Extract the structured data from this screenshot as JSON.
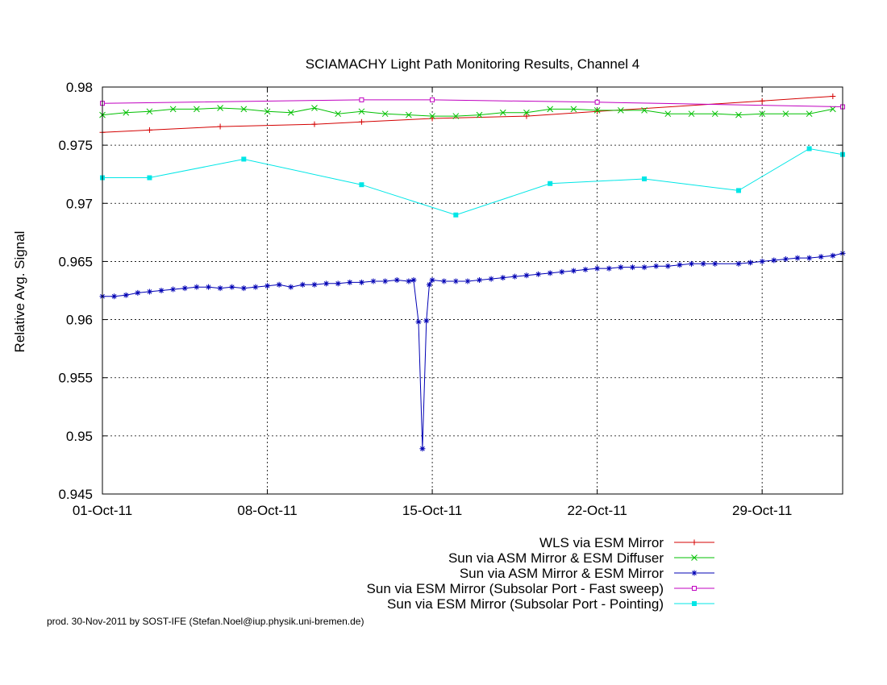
{
  "chart_data": {
    "type": "line",
    "title": "SCIAMACHY Light Path Monitoring Results, Channel 4",
    "xlabel": "",
    "ylabel": "Relative Avg. Signal",
    "x_type": "date",
    "xlim": [
      "2011-10-01",
      "2011-11-01T10:00"
    ],
    "ylim": [
      0.945,
      0.98
    ],
    "x_ticks": [
      {
        "date": "2011-10-01",
        "label": "01-Oct-11"
      },
      {
        "date": "2011-10-08",
        "label": "08-Oct-11"
      },
      {
        "date": "2011-10-15",
        "label": "15-Oct-11"
      },
      {
        "date": "2011-10-22",
        "label": "22-Oct-11"
      },
      {
        "date": "2011-10-29",
        "label": "29-Oct-11"
      }
    ],
    "y_ticks": [
      {
        "value": 0.945,
        "label": "0.945"
      },
      {
        "value": 0.95,
        "label": "0.95"
      },
      {
        "value": 0.955,
        "label": "0.955"
      },
      {
        "value": 0.96,
        "label": "0.96"
      },
      {
        "value": 0.965,
        "label": "0.965"
      },
      {
        "value": 0.97,
        "label": "0.97"
      },
      {
        "value": 0.975,
        "label": "0.975"
      },
      {
        "value": 0.98,
        "label": "0.98"
      }
    ],
    "grid": true,
    "legend_position": "bottom-right, below plot",
    "series": [
      {
        "name": "WLS via ESM Mirror",
        "color": "#d40000",
        "marker": "plus",
        "points": [
          [
            "2011-10-01",
            0.9761
          ],
          [
            "2011-10-03",
            0.9763
          ],
          [
            "2011-10-06",
            0.9766
          ],
          [
            "2011-10-10",
            0.9768
          ],
          [
            "2011-10-12",
            0.977
          ],
          [
            "2011-10-15",
            0.9773
          ],
          [
            "2011-10-19",
            0.9775
          ],
          [
            "2011-10-22",
            0.9779
          ],
          [
            "2011-10-29",
            0.9788
          ],
          [
            "2011-11-01",
            0.9792
          ]
        ]
      },
      {
        "name": "Sun via ASM Mirror & ESM Diffuser",
        "color": "#00c000",
        "marker": "x",
        "points": [
          [
            "2011-10-01",
            0.9776
          ],
          [
            "2011-10-02",
            0.9778
          ],
          [
            "2011-10-03",
            0.9779
          ],
          [
            "2011-10-04",
            0.9781
          ],
          [
            "2011-10-05",
            0.9781
          ],
          [
            "2011-10-06",
            0.9782
          ],
          [
            "2011-10-07",
            0.9781
          ],
          [
            "2011-10-08",
            0.9779
          ],
          [
            "2011-10-09",
            0.9778
          ],
          [
            "2011-10-10",
            0.9782
          ],
          [
            "2011-10-11",
            0.9777
          ],
          [
            "2011-10-12",
            0.9779
          ],
          [
            "2011-10-13",
            0.9777
          ],
          [
            "2011-10-14",
            0.9776
          ],
          [
            "2011-10-15",
            0.9775
          ],
          [
            "2011-10-16",
            0.9775
          ],
          [
            "2011-10-17",
            0.9776
          ],
          [
            "2011-10-18",
            0.9778
          ],
          [
            "2011-10-19",
            0.9778
          ],
          [
            "2011-10-20",
            0.9781
          ],
          [
            "2011-10-21",
            0.9781
          ],
          [
            "2011-10-22",
            0.978
          ],
          [
            "2011-10-23",
            0.978
          ],
          [
            "2011-10-24",
            0.978
          ],
          [
            "2011-10-25",
            0.9777
          ],
          [
            "2011-10-26",
            0.9777
          ],
          [
            "2011-10-27",
            0.9777
          ],
          [
            "2011-10-28",
            0.9776
          ],
          [
            "2011-10-29",
            0.9777
          ],
          [
            "2011-10-30",
            0.9777
          ],
          [
            "2011-10-31",
            0.9777
          ],
          [
            "2011-11-01",
            0.9781
          ]
        ]
      },
      {
        "name": "Sun via ASM Mirror & ESM Mirror",
        "color": "#0000b4",
        "marker": "star",
        "points": [
          [
            "2011-10-01",
            0.962
          ],
          [
            "2011-10-01T12:00",
            0.962
          ],
          [
            "2011-10-02",
            0.9621
          ],
          [
            "2011-10-02T12:00",
            0.9623
          ],
          [
            "2011-10-03",
            0.9624
          ],
          [
            "2011-10-03T12:00",
            0.9625
          ],
          [
            "2011-10-04",
            0.9626
          ],
          [
            "2011-10-04T12:00",
            0.9627
          ],
          [
            "2011-10-05",
            0.9628
          ],
          [
            "2011-10-05T12:00",
            0.9628
          ],
          [
            "2011-10-06",
            0.9627
          ],
          [
            "2011-10-06T12:00",
            0.9628
          ],
          [
            "2011-10-07",
            0.9627
          ],
          [
            "2011-10-07T12:00",
            0.9628
          ],
          [
            "2011-10-08",
            0.9629
          ],
          [
            "2011-10-08T12:00",
            0.963
          ],
          [
            "2011-10-09",
            0.9628
          ],
          [
            "2011-10-09T12:00",
            0.963
          ],
          [
            "2011-10-10",
            0.963
          ],
          [
            "2011-10-10T12:00",
            0.9631
          ],
          [
            "2011-10-11",
            0.9631
          ],
          [
            "2011-10-11T12:00",
            0.9632
          ],
          [
            "2011-10-12",
            0.9632
          ],
          [
            "2011-10-12T12:00",
            0.9633
          ],
          [
            "2011-10-13",
            0.9633
          ],
          [
            "2011-10-13T12:00",
            0.9634
          ],
          [
            "2011-10-14",
            0.9633
          ],
          [
            "2011-10-14T05:00",
            0.9634
          ],
          [
            "2011-10-14T10:00",
            0.9598
          ],
          [
            "2011-10-14T14:00",
            0.9489
          ],
          [
            "2011-10-14T18:00",
            0.9599
          ],
          [
            "2011-10-14T21:00",
            0.963
          ],
          [
            "2011-10-15",
            0.9634
          ],
          [
            "2011-10-15T12:00",
            0.9633
          ],
          [
            "2011-10-16",
            0.9633
          ],
          [
            "2011-10-16T12:00",
            0.9633
          ],
          [
            "2011-10-17",
            0.9634
          ],
          [
            "2011-10-17T12:00",
            0.9635
          ],
          [
            "2011-10-18",
            0.9636
          ],
          [
            "2011-10-18T12:00",
            0.9637
          ],
          [
            "2011-10-19",
            0.9638
          ],
          [
            "2011-10-19T12:00",
            0.9639
          ],
          [
            "2011-10-20",
            0.964
          ],
          [
            "2011-10-20T12:00",
            0.9641
          ],
          [
            "2011-10-21",
            0.9642
          ],
          [
            "2011-10-21T12:00",
            0.9643
          ],
          [
            "2011-10-22",
            0.9644
          ],
          [
            "2011-10-22T12:00",
            0.9644
          ],
          [
            "2011-10-23",
            0.9645
          ],
          [
            "2011-10-23T12:00",
            0.9645
          ],
          [
            "2011-10-24",
            0.9645
          ],
          [
            "2011-10-24T12:00",
            0.9646
          ],
          [
            "2011-10-25",
            0.9646
          ],
          [
            "2011-10-25T12:00",
            0.9647
          ],
          [
            "2011-10-26",
            0.9648
          ],
          [
            "2011-10-26T12:00",
            0.9648
          ],
          [
            "2011-10-27",
            0.9648
          ],
          [
            "2011-10-28",
            0.9648
          ],
          [
            "2011-10-28T12:00",
            0.9649
          ],
          [
            "2011-10-29",
            0.965
          ],
          [
            "2011-10-29T12:00",
            0.9651
          ],
          [
            "2011-10-30",
            0.9652
          ],
          [
            "2011-10-30T12:00",
            0.9653
          ],
          [
            "2011-10-31",
            0.9653
          ],
          [
            "2011-10-31T12:00",
            0.9654
          ],
          [
            "2011-11-01",
            0.9655
          ],
          [
            "2011-11-01T10:00",
            0.9657
          ]
        ]
      },
      {
        "name": "Sun via ESM Mirror (Subsolar Port - Fast sweep)",
        "color": "#c000c0",
        "marker": "square-open",
        "points": [
          [
            "2011-10-01",
            0.9786
          ],
          [
            "2011-10-12",
            0.9789
          ],
          [
            "2011-10-15",
            0.9789
          ],
          [
            "2011-10-22",
            0.9787
          ],
          [
            "2011-11-01T10:00",
            0.9783
          ]
        ]
      },
      {
        "name": "Sun via ESM Mirror (Subsolar Port - Pointing)",
        "color": "#00e6e6",
        "marker": "square-filled",
        "points": [
          [
            "2011-10-01",
            0.9722
          ],
          [
            "2011-10-03",
            0.9722
          ],
          [
            "2011-10-07",
            0.9738
          ],
          [
            "2011-10-12",
            0.9716
          ],
          [
            "2011-10-16",
            0.969
          ],
          [
            "2011-10-20",
            0.9717
          ],
          [
            "2011-10-24",
            0.9721
          ],
          [
            "2011-10-28",
            0.9711
          ],
          [
            "2011-10-31",
            0.9747
          ],
          [
            "2011-11-01T10:00",
            0.9742
          ]
        ]
      }
    ]
  },
  "credit": "prod. 30-Nov-2011 by SOST-IFE (Stefan.Noel@iup.physik.uni-bremen.de)"
}
